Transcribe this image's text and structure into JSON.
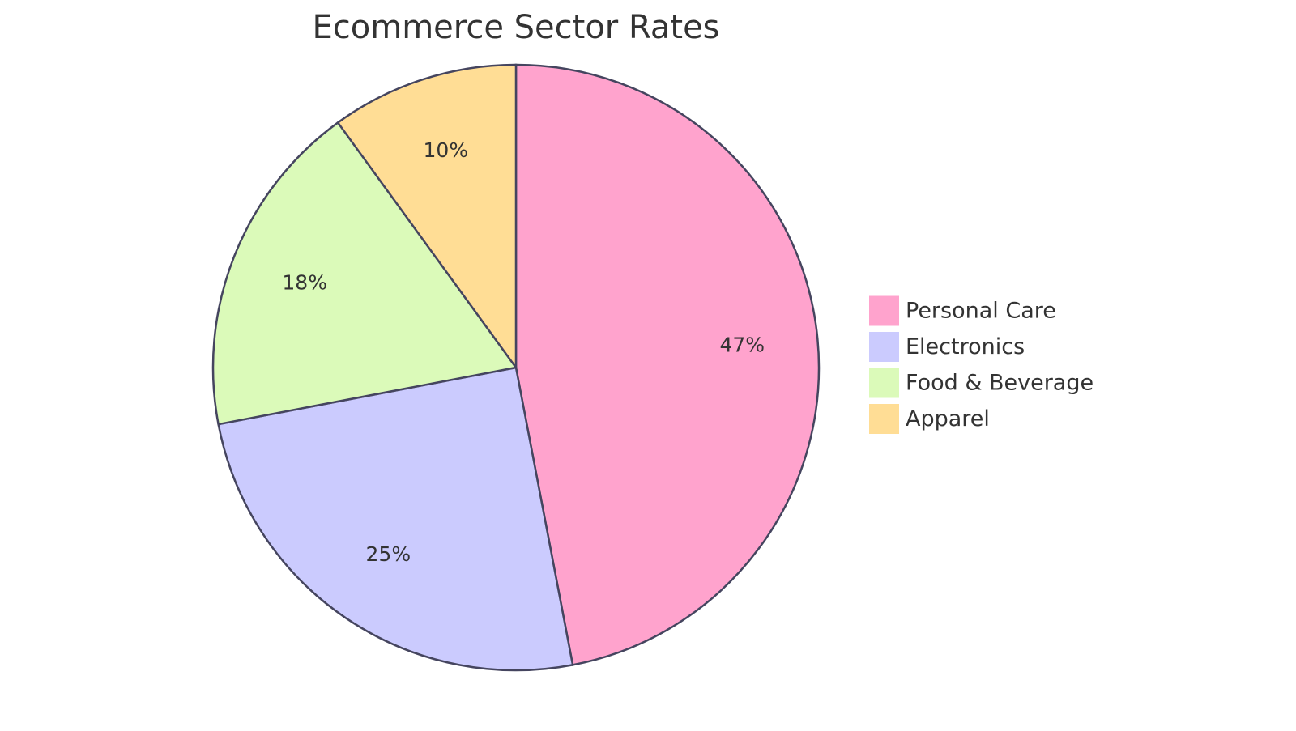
{
  "chart_data": {
    "type": "pie",
    "title": "Ecommerce Sector Rates",
    "categories": [
      "Personal Care",
      "Electronics",
      "Food & Beverage",
      "Apparel"
    ],
    "values": [
      47,
      25,
      18,
      10
    ],
    "value_labels": [
      "47%",
      "25%",
      "18%",
      "10%"
    ],
    "colors": [
      "#ffa3cd",
      "#cbcbfe",
      "#dbfab9",
      "#ffdd95"
    ],
    "legend": "right"
  }
}
